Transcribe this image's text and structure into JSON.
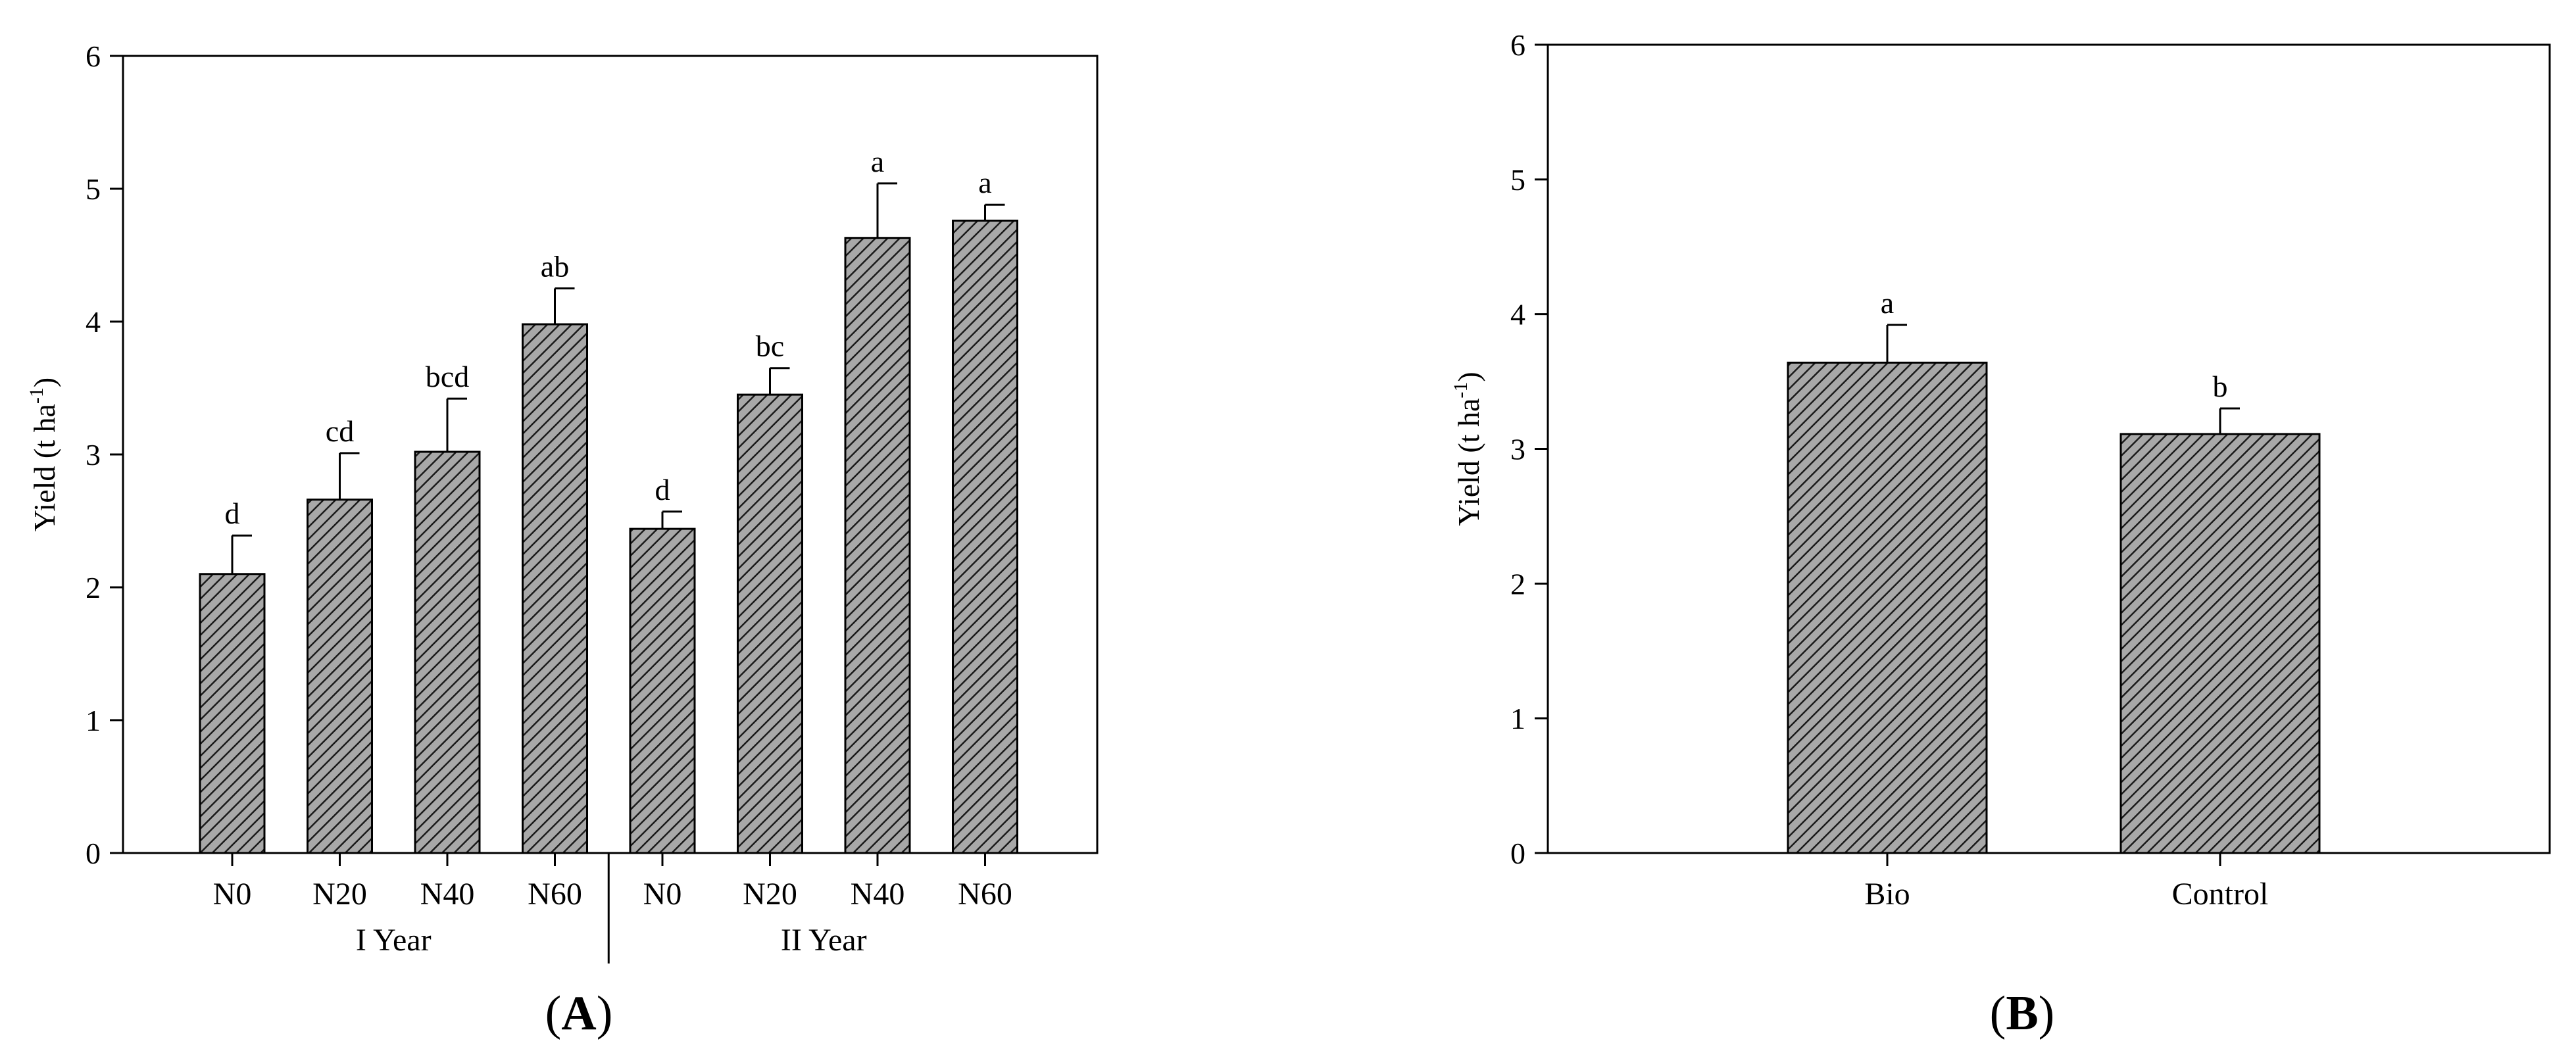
{
  "chart_data": [
    {
      "type": "bar",
      "panel": "(A)",
      "panel_letter": "A",
      "ylabel": "Yield (t ha",
      "ylabel_superscript": "-1",
      "ylim": [
        0,
        6
      ],
      "yticks": [
        "0",
        "1",
        "2",
        "3",
        "4",
        "5",
        "6"
      ],
      "categories": [
        "N0",
        "N20",
        "N40",
        "N60",
        "N0",
        "N20",
        "N40",
        "N60"
      ],
      "groups": [
        {
          "label": "I Year",
          "categories": [
            0,
            1,
            2,
            3
          ]
        },
        {
          "label": "II Year",
          "categories": [
            4,
            5,
            6,
            7
          ]
        }
      ],
      "values": [
        2.1,
        2.66,
        3.02,
        3.98,
        2.44,
        3.45,
        4.63,
        4.76
      ],
      "errors": [
        0.29,
        0.35,
        0.4,
        0.27,
        0.13,
        0.2,
        0.41,
        0.12
      ],
      "significance": [
        "d",
        "cd",
        "bcd",
        "ab",
        "d",
        "bc",
        "a",
        "a"
      ],
      "grid": false,
      "bar_pattern": "diagonal-hatch",
      "bar_color": "#9a9a9a"
    },
    {
      "type": "bar",
      "panel": "(B)",
      "panel_letter": "B",
      "ylabel": "Yield (t ha",
      "ylabel_superscript": "-1",
      "ylim": [
        0,
        6
      ],
      "yticks": [
        "0",
        "1",
        "2",
        "3",
        "4",
        "5",
        "6"
      ],
      "categories": [
        "Bio",
        "Control"
      ],
      "values": [
        3.64,
        3.11
      ],
      "errors": [
        0.28,
        0.19
      ],
      "significance": [
        "a",
        "b"
      ],
      "grid": false,
      "bar_pattern": "diagonal-hatch",
      "bar_color": "#9a9a9a"
    }
  ]
}
